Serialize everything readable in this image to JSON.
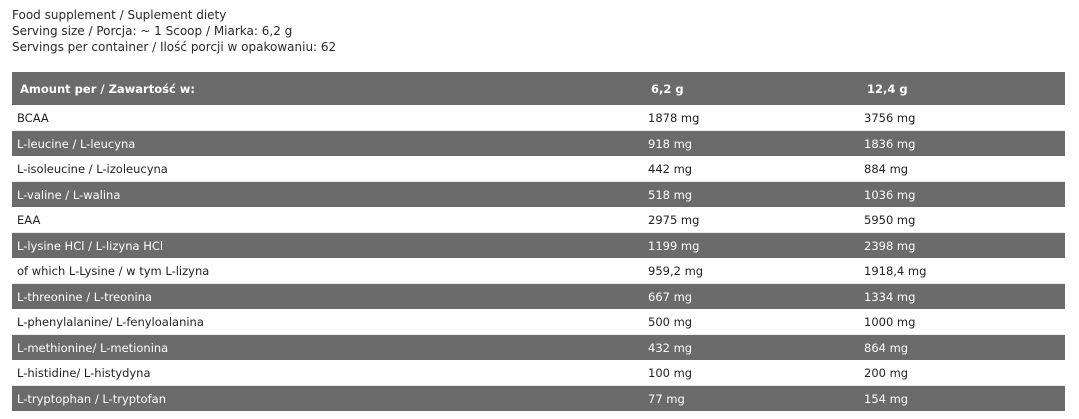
{
  "intro": [
    "Food supplement / Suplement diety",
    "Serving size / Porcja: ~ 1 Scoop / Miarka: 6,2 g",
    "Servings per container / Ilość porcji w opakowaniu: 62"
  ],
  "table": {
    "headers": [
      "Amount per / Zawartość w:",
      "6,2 g",
      "12,4 g"
    ],
    "rows": [
      [
        "BCAA",
        "1878 mg",
        "3756 mg"
      ],
      [
        "L-leucine / L-leucyna",
        "918 mg",
        "1836 mg"
      ],
      [
        "L-isoleucine / L-izoleucyna",
        "442 mg",
        "884 mg"
      ],
      [
        "L-valine / L-walina",
        "518 mg",
        "1036 mg"
      ],
      [
        "EAA",
        "2975 mg",
        "5950 mg"
      ],
      [
        "L-lysine HCl / L-lizyna HCl",
        "1199 mg",
        "2398 mg"
      ],
      [
        "of which L-Lysine / w tym L-lizyna",
        "959,2 mg",
        "1918,4 mg"
      ],
      [
        "L-threonine / L-treonina",
        "667 mg",
        "1334 mg"
      ],
      [
        "L-phenylalanine/ L-fenyloalanina",
        "500 mg",
        "1000 mg"
      ],
      [
        "L-methionine/ L-metionina",
        "432 mg",
        "864 mg"
      ],
      [
        "L-histidine/ L-histydyna",
        "100 mg",
        "200 mg"
      ],
      [
        "L-tryptophan / L-tryptofan",
        "77 mg",
        "154 mg"
      ]
    ]
  },
  "colors": {
    "header_bg": "#6b6b6b"
  }
}
